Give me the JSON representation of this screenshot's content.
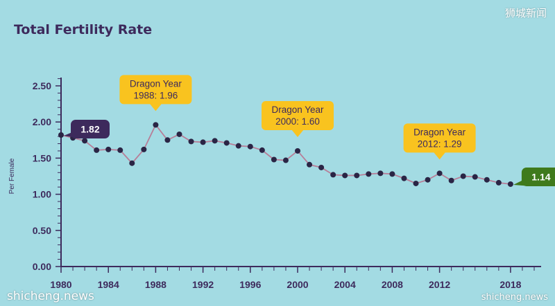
{
  "chart_data": {
    "type": "line",
    "title": "Total Fertility Rate",
    "ylabel": "Per Female",
    "xlabel": "",
    "ylim": [
      0,
      2.5
    ],
    "xlim": [
      1980,
      2020
    ],
    "yticks": [
      "0.00",
      "0.50",
      "1.00",
      "1.50",
      "2.00",
      "2.50"
    ],
    "xticks": [
      "1980",
      "1984",
      "1988",
      "1992",
      "1996",
      "2000",
      "2004",
      "2008",
      "2012",
      "2018"
    ],
    "x": [
      1980,
      1981,
      1982,
      1983,
      1984,
      1985,
      1986,
      1987,
      1988,
      1989,
      1990,
      1991,
      1992,
      1993,
      1994,
      1995,
      1996,
      1997,
      1998,
      1999,
      2000,
      2001,
      2002,
      2003,
      2004,
      2005,
      2006,
      2007,
      2008,
      2009,
      2010,
      2011,
      2012,
      2013,
      2014,
      2015,
      2016,
      2017,
      2018
    ],
    "y": [
      1.82,
      1.78,
      1.74,
      1.61,
      1.62,
      1.61,
      1.43,
      1.62,
      1.96,
      1.75,
      1.83,
      1.73,
      1.72,
      1.74,
      1.71,
      1.67,
      1.66,
      1.61,
      1.48,
      1.47,
      1.6,
      1.41,
      1.37,
      1.27,
      1.26,
      1.26,
      1.28,
      1.29,
      1.28,
      1.22,
      1.15,
      1.2,
      1.29,
      1.19,
      1.25,
      1.24,
      1.2,
      1.16,
      1.14
    ],
    "grid": false,
    "callouts": [
      {
        "year": 1980,
        "text": "1.82",
        "style": "start"
      },
      {
        "year": 2018,
        "text": "1.14",
        "style": "end"
      }
    ],
    "annotations": [
      {
        "year": 1988,
        "line1": "Dragon Year",
        "line2": "1988: 1.96"
      },
      {
        "year": 2000,
        "line1": "Dragon Year",
        "line2": "2000: 1.60"
      },
      {
        "year": 2012,
        "line1": "Dragon Year",
        "line2": "2012: 1.29"
      }
    ]
  },
  "colors": {
    "background": "#a3dbe3",
    "line": "#b77e98",
    "marker": "#2a2545",
    "axis": "#3d2a5c",
    "start_callout": "#3d2a5c",
    "end_callout": "#3f7a1c",
    "annotation": "#f9c31f"
  },
  "watermarks": {
    "top_right": "狮城新闻",
    "bottom_left": "shicheng.news",
    "bottom_right": "shicheng.news"
  }
}
